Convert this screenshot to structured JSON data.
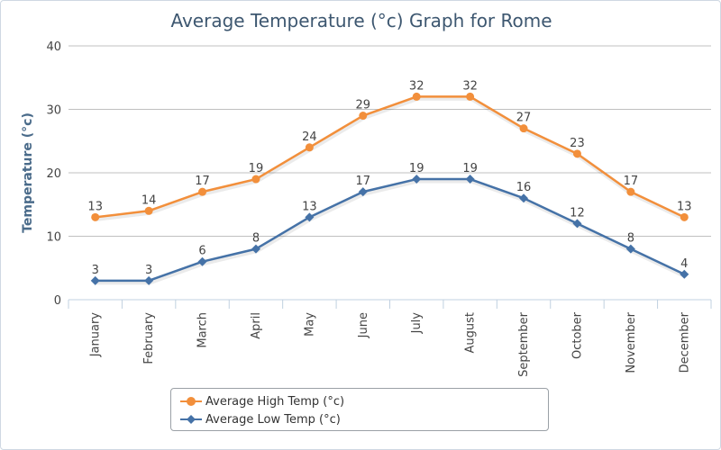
{
  "chart_data": {
    "type": "line",
    "title": "Average Temperature (°c) Graph for Rome",
    "xlabel": "",
    "ylabel": "Temperature (°c)",
    "ylim": [
      0,
      40
    ],
    "yticks": [
      0,
      10,
      20,
      30,
      40
    ],
    "grid": true,
    "legend_position": "bottom",
    "categories": [
      "January",
      "February",
      "March",
      "April",
      "May",
      "June",
      "July",
      "August",
      "September",
      "October",
      "November",
      "December"
    ],
    "series": [
      {
        "name": "Average High Temp (°c)",
        "color": "#f28f3b",
        "marker": "circle",
        "values": [
          13,
          14,
          17,
          19,
          24,
          29,
          32,
          32,
          27,
          23,
          17,
          13
        ]
      },
      {
        "name": "Average Low Temp (°c)",
        "color": "#4572a7",
        "marker": "diamond",
        "values": [
          3,
          3,
          6,
          8,
          13,
          17,
          19,
          19,
          16,
          12,
          8,
          4
        ]
      }
    ]
  }
}
